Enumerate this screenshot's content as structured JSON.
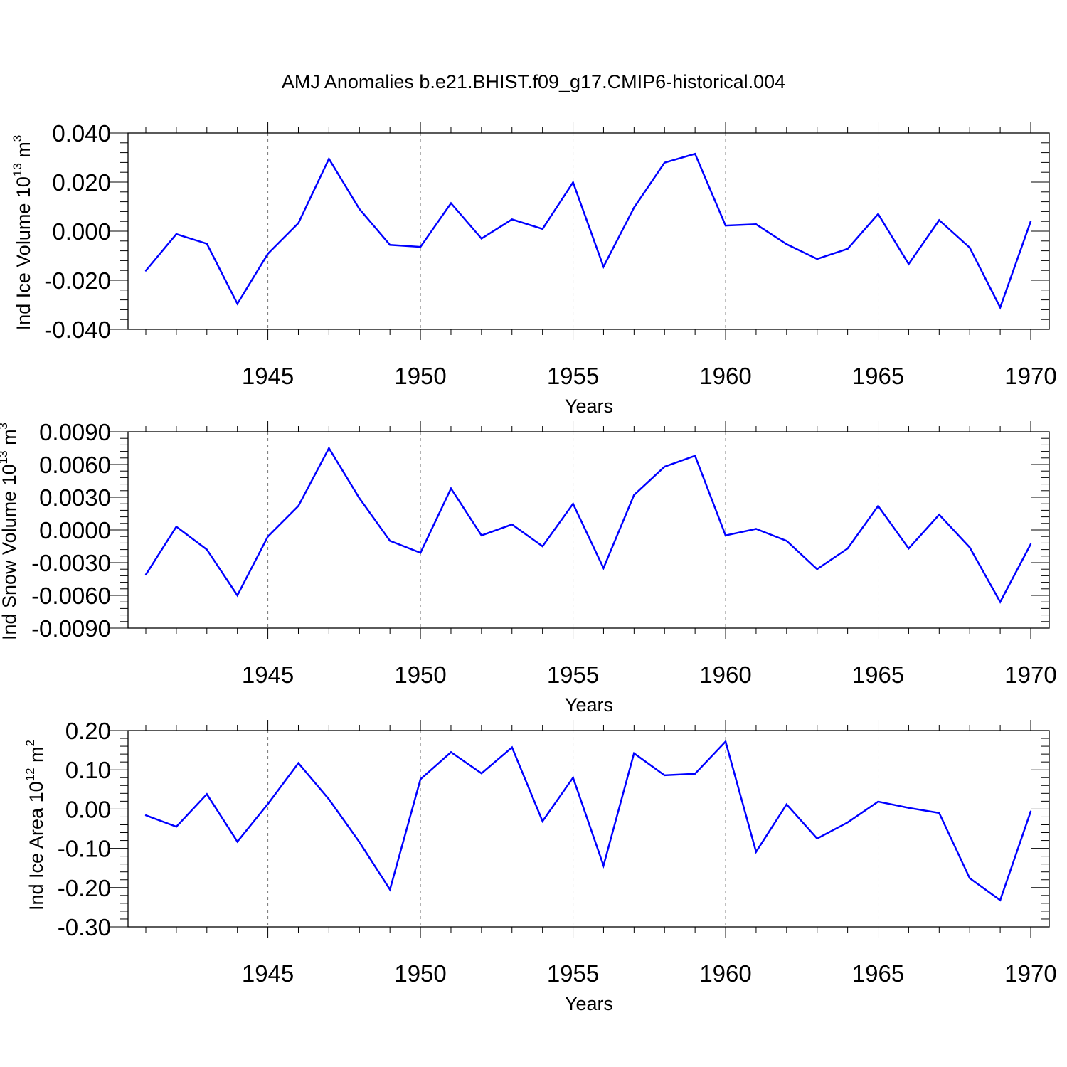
{
  "figure_title": "AMJ Anomalies b.e21.BHIST.f09_g17.CMIP6-historical.004",
  "line_color": "#0000ff",
  "chart_data": [
    {
      "type": "line",
      "title": "AMJ Anomalies b.e21.BHIST.f09_g17.CMIP6-historical.004",
      "xlabel": "Years",
      "ylabel": {
        "main": "Ind Ice Volume 10",
        "sup": "13",
        "unit": " m",
        "unit_sup": "3"
      },
      "xlim": [
        1941,
        1970
      ],
      "ylim": [
        -0.04,
        0.04
      ],
      "xticks": [
        1945,
        1950,
        1955,
        1960,
        1965,
        1970
      ],
      "yticks": [
        -0.04,
        -0.02,
        0.0,
        0.02,
        0.04
      ],
      "ytick_labels": [
        "-0.040",
        "-0.020",
        "0.000",
        "0.020",
        "0.040"
      ],
      "grid": "dashed vertical at major x ticks",
      "x": [
        1941,
        1942,
        1943,
        1944,
        1945,
        1946,
        1947,
        1948,
        1949,
        1950,
        1951,
        1952,
        1953,
        1954,
        1955,
        1956,
        1957,
        1958,
        1959,
        1960,
        1961,
        1962,
        1963,
        1964,
        1965,
        1966,
        1967,
        1968,
        1969,
        1970
      ],
      "series": [
        {
          "name": "Ind Ice Volume",
          "values": [
            -0.0161,
            -0.0012,
            -0.0051,
            -0.0296,
            -0.0092,
            0.0033,
            0.0295,
            0.009,
            -0.0056,
            -0.0064,
            0.0114,
            -0.003,
            0.0048,
            0.0009,
            0.0199,
            -0.0145,
            0.0096,
            0.0279,
            0.0315,
            0.0023,
            0.0028,
            -0.0053,
            -0.0113,
            -0.0072,
            0.007,
            -0.0134,
            0.0045,
            -0.0067,
            -0.0311,
            0.004
          ]
        }
      ]
    },
    {
      "type": "line",
      "xlabel": "Years",
      "ylabel": {
        "main": "Ind Snow Volume 10",
        "sup": "13",
        "unit": " m",
        "unit_sup": "3"
      },
      "xlim": [
        1941,
        1970
      ],
      "ylim": [
        -0.009,
        0.009
      ],
      "xticks": [
        1945,
        1950,
        1955,
        1960,
        1965,
        1970
      ],
      "yticks": [
        -0.009,
        -0.006,
        -0.003,
        0.0,
        0.003,
        0.006,
        0.009
      ],
      "ytick_labels": [
        "-0.0090",
        "-0.0060",
        "-0.0030",
        "0.0000",
        "0.0030",
        "0.0060",
        "0.0090"
      ],
      "grid": "dashed vertical at major x ticks",
      "x": [
        1941,
        1942,
        1943,
        1944,
        1945,
        1946,
        1947,
        1948,
        1949,
        1950,
        1951,
        1952,
        1953,
        1954,
        1955,
        1956,
        1957,
        1958,
        1959,
        1960,
        1961,
        1962,
        1963,
        1964,
        1965,
        1966,
        1967,
        1968,
        1969,
        1970
      ],
      "series": [
        {
          "name": "Ind Snow Volume",
          "values": [
            -0.0041,
            0.0003,
            -0.0018,
            -0.006,
            -0.0006,
            0.0022,
            0.0075,
            0.0029,
            -0.001,
            -0.0021,
            0.0038,
            -0.0005,
            0.0005,
            -0.0015,
            0.0024,
            -0.0035,
            0.0032,
            0.0058,
            0.0068,
            -0.0005,
            0.0001,
            -0.001,
            -0.0036,
            -0.0017,
            0.0022,
            -0.0017,
            0.0014,
            -0.0016,
            -0.0066,
            -0.0013
          ]
        }
      ]
    },
    {
      "type": "line",
      "xlabel": "Years",
      "ylabel": {
        "main": "Ind Ice Area 10",
        "sup": "12",
        "unit": " m",
        "unit_sup": "2"
      },
      "xlim": [
        1941,
        1970
      ],
      "ylim": [
        -0.3,
        0.2
      ],
      "xticks": [
        1945,
        1950,
        1955,
        1960,
        1965,
        1970
      ],
      "yticks": [
        -0.3,
        -0.2,
        -0.1,
        0.0,
        0.1,
        0.2
      ],
      "ytick_labels": [
        "-0.30",
        "-0.20",
        "-0.10",
        "0.00",
        "0.10",
        "0.20"
      ],
      "grid": "dashed vertical at major x ticks",
      "x": [
        1941,
        1942,
        1943,
        1944,
        1945,
        1946,
        1947,
        1948,
        1949,
        1950,
        1951,
        1952,
        1953,
        1954,
        1955,
        1956,
        1957,
        1958,
        1959,
        1960,
        1961,
        1962,
        1963,
        1964,
        1965,
        1966,
        1967,
        1968,
        1969,
        1970
      ],
      "series": [
        {
          "name": "Ind Ice Area",
          "values": [
            -0.016,
            -0.045,
            0.038,
            -0.083,
            0.013,
            0.117,
            0.025,
            -0.084,
            -0.205,
            0.076,
            0.145,
            0.091,
            0.157,
            -0.031,
            0.08,
            -0.144,
            0.142,
            0.086,
            0.09,
            0.172,
            -0.109,
            0.012,
            -0.075,
            -0.034,
            0.019,
            0.003,
            -0.01,
            -0.176,
            -0.232,
            -0.006
          ]
        }
      ]
    }
  ]
}
